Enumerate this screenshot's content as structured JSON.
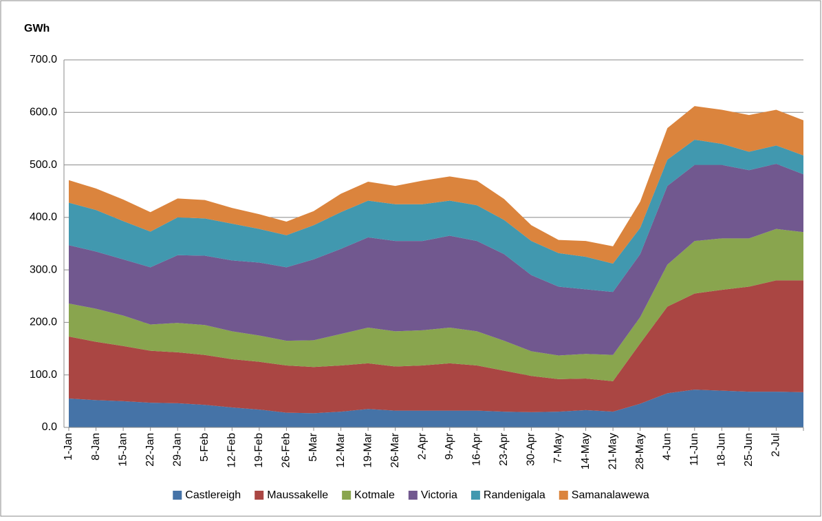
{
  "chart_data": {
    "type": "stacked_area",
    "y_label": "GWh",
    "categories": [
      "1-Jan",
      "8-Jan",
      "15-Jan",
      "22-Jan",
      "29-Jan",
      "5-Feb",
      "12-Feb",
      "19-Feb",
      "26-Feb",
      "5-Mar",
      "12-Mar",
      "19-Mar",
      "26-Mar",
      "2-Apr",
      "9-Apr",
      "16-Apr",
      "23-Apr",
      "30-Apr",
      "7-May",
      "14-May",
      "21-May",
      "28-May",
      "4-Jun",
      "11-Jun",
      "18-Jun",
      "25-Jun",
      "2-Jul",
      null
    ],
    "series": [
      {
        "name": "Castlereigh",
        "color": "#4573a7",
        "values": [
          55,
          52,
          50,
          47,
          46,
          43,
          38,
          34,
          28,
          27,
          30,
          35,
          32,
          32,
          32,
          32,
          30,
          29,
          30,
          33,
          30,
          45,
          65,
          72,
          70,
          68,
          68,
          67
        ]
      },
      {
        "name": "Maussakelle",
        "color": "#aa4643",
        "values": [
          118,
          111,
          105,
          99,
          97,
          95,
          92,
          91,
          90,
          88,
          88,
          87,
          84,
          86,
          90,
          86,
          78,
          69,
          62,
          60,
          58,
          115,
          165,
          183,
          192,
          200,
          212,
          213
        ]
      },
      {
        "name": "Kotmale",
        "color": "#89a54e",
        "values": [
          63,
          63,
          58,
          50,
          56,
          57,
          53,
          50,
          47,
          51,
          60,
          68,
          67,
          67,
          68,
          65,
          57,
          47,
          45,
          47,
          50,
          50,
          80,
          100,
          98,
          92,
          98,
          92
        ]
      },
      {
        "name": "Victoria",
        "color": "#71588f",
        "values": [
          111,
          109,
          107,
          109,
          129,
          132,
          135,
          139,
          140,
          154,
          162,
          172,
          172,
          170,
          175,
          172,
          165,
          145,
          131,
          123,
          120,
          120,
          150,
          145,
          140,
          130,
          124,
          110
        ]
      },
      {
        "name": "Randenigala",
        "color": "#4198af",
        "values": [
          81,
          79,
          73,
          68,
          72,
          71,
          70,
          64,
          61,
          65,
          70,
          70,
          70,
          70,
          67,
          68,
          65,
          65,
          64,
          62,
          54,
          50,
          50,
          48,
          40,
          35,
          35,
          36
        ]
      },
      {
        "name": "Samanalawewa",
        "color": "#db843d",
        "values": [
          43,
          41,
          41,
          37,
          36,
          35,
          30,
          28,
          26,
          27,
          35,
          36,
          35,
          45,
          46,
          47,
          40,
          30,
          25,
          30,
          33,
          50,
          60,
          64,
          65,
          70,
          68,
          67
        ]
      }
    ],
    "ylim": [
      0,
      700
    ],
    "yticks": [
      {
        "value": 0,
        "label": "0.0"
      },
      {
        "value": 100,
        "label": "100.0"
      },
      {
        "value": 200,
        "label": "200.0"
      },
      {
        "value": 300,
        "label": "300.0"
      },
      {
        "value": 400,
        "label": "400.0"
      },
      {
        "value": 500,
        "label": "500.0"
      },
      {
        "value": 600,
        "label": "600.0"
      },
      {
        "value": 700,
        "label": "700.0"
      }
    ],
    "grid": true,
    "legend": "bottom"
  }
}
